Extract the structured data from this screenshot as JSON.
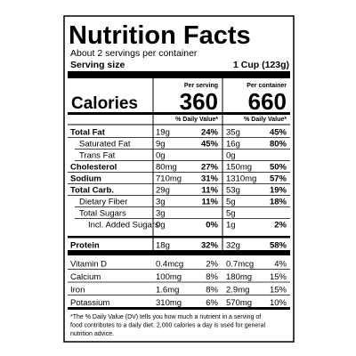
{
  "header": {
    "title": "Nutrition Facts",
    "servings": "About 2 servings per container",
    "serving_size_label": "Serving size",
    "serving_size": "1 Cup (123g)"
  },
  "columns": {
    "serving": "Per serving",
    "container": "Per container",
    "dv": "% Daily Value*"
  },
  "calories": {
    "label": "Calories",
    "serving": "360",
    "container": "660"
  },
  "nutrients": [
    {
      "label": "Total Fat",
      "serving": [
        "19g",
        "24%"
      ],
      "container": [
        "35g",
        "45%"
      ]
    },
    {
      "label": "Saturated Fat",
      "serving": [
        "9g",
        "45%"
      ],
      "container": [
        "16g",
        "80%"
      ]
    },
    {
      "label": "Trans Fat",
      "serving": [
        "0g"
      ],
      "container": [
        "0g"
      ]
    },
    {
      "label": "Cholesterol",
      "serving": [
        "80mg",
        "27%"
      ],
      "container": [
        "150mg",
        "50%"
      ]
    },
    {
      "label": "Sodium",
      "serving": [
        "710mg",
        "31%"
      ],
      "container": [
        "1310mg",
        "57%"
      ]
    },
    {
      "label": "Total Carb.",
      "serving": [
        "29g",
        "11%"
      ],
      "container": [
        "53g",
        "19%"
      ]
    },
    {
      "label": "Dietary Fiber",
      "serving": [
        "3g",
        "11%"
      ],
      "container": [
        "5g",
        "18%"
      ]
    },
    {
      "label": "Total Sugars",
      "serving": [
        "3g"
      ],
      "container": [
        "5g"
      ]
    },
    {
      "label": "Incl. Added Sugars",
      "serving": [
        "0g",
        "0%"
      ],
      "container": [
        "1g",
        "2%"
      ]
    },
    {
      "label": "Protein",
      "serving": [
        "18g",
        "32%"
      ],
      "container": [
        "32g",
        "58%"
      ]
    }
  ],
  "vitamins": [
    {
      "label": "Vitamin D",
      "serving": [
        "0.4mcg",
        "2%"
      ],
      "container": [
        "0.7mcg",
        "4%"
      ]
    },
    {
      "label": "Calcium",
      "serving": [
        "100mg",
        "8%"
      ],
      "container": [
        "180mg",
        "15%"
      ]
    },
    {
      "label": "Iron",
      "serving": [
        "1.6mg",
        "8%"
      ],
      "container": [
        "2.9mg",
        "15%"
      ]
    },
    {
      "label": "Potassium",
      "serving": [
        "310mg",
        "6%"
      ],
      "container": [
        "570mg",
        "10%"
      ]
    }
  ],
  "footnote": [
    "*The % Daily Value (DV) tells you how much a nutrient in a serving of",
    "food contributes to a daily diet. 2,000 calories a day is used for general",
    "nutrition advice."
  ]
}
